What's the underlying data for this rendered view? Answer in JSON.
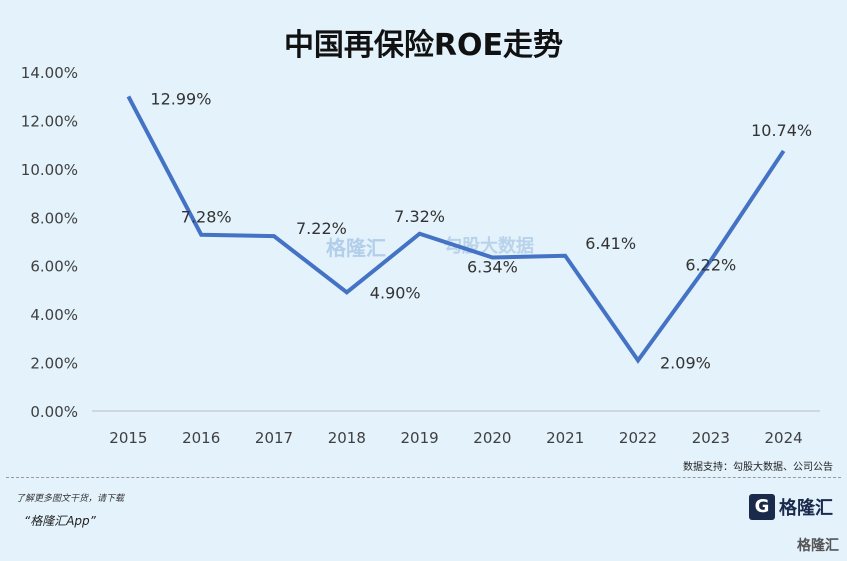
{
  "chart_data": {
    "type": "line",
    "title": "中国再保险ROE走势",
    "categories": [
      "2015",
      "2016",
      "2017",
      "2018",
      "2019",
      "2020",
      "2021",
      "2022",
      "2023",
      "2024"
    ],
    "values": [
      12.99,
      7.28,
      7.22,
      4.9,
      7.32,
      6.34,
      6.41,
      2.09,
      6.22,
      10.74
    ],
    "data_labels": [
      "12.99%",
      "7.28%",
      "7.22%",
      "4.90%",
      "7.32%",
      "6.34%",
      "6.41%",
      "2.09%",
      "6.22%",
      "10.74%"
    ],
    "yticks": [
      "0.00%",
      "2.00%",
      "4.00%",
      "6.00%",
      "8.00%",
      "10.00%",
      "12.00%",
      "14.00%"
    ],
    "ylim": [
      0,
      14
    ],
    "line_color": "#4472c4",
    "grid": false,
    "legend": "none"
  },
  "source": "数据支持：勾股大数据、公司公告",
  "footer": {
    "note": "了解更多图文干货，请下载",
    "app": "“格隆汇App”"
  },
  "logo": {
    "mark": "G",
    "text": "格隆汇"
  },
  "corner": "格隆汇",
  "watermark": {
    "left": "格隆汇",
    "right": "勾股大数据"
  }
}
